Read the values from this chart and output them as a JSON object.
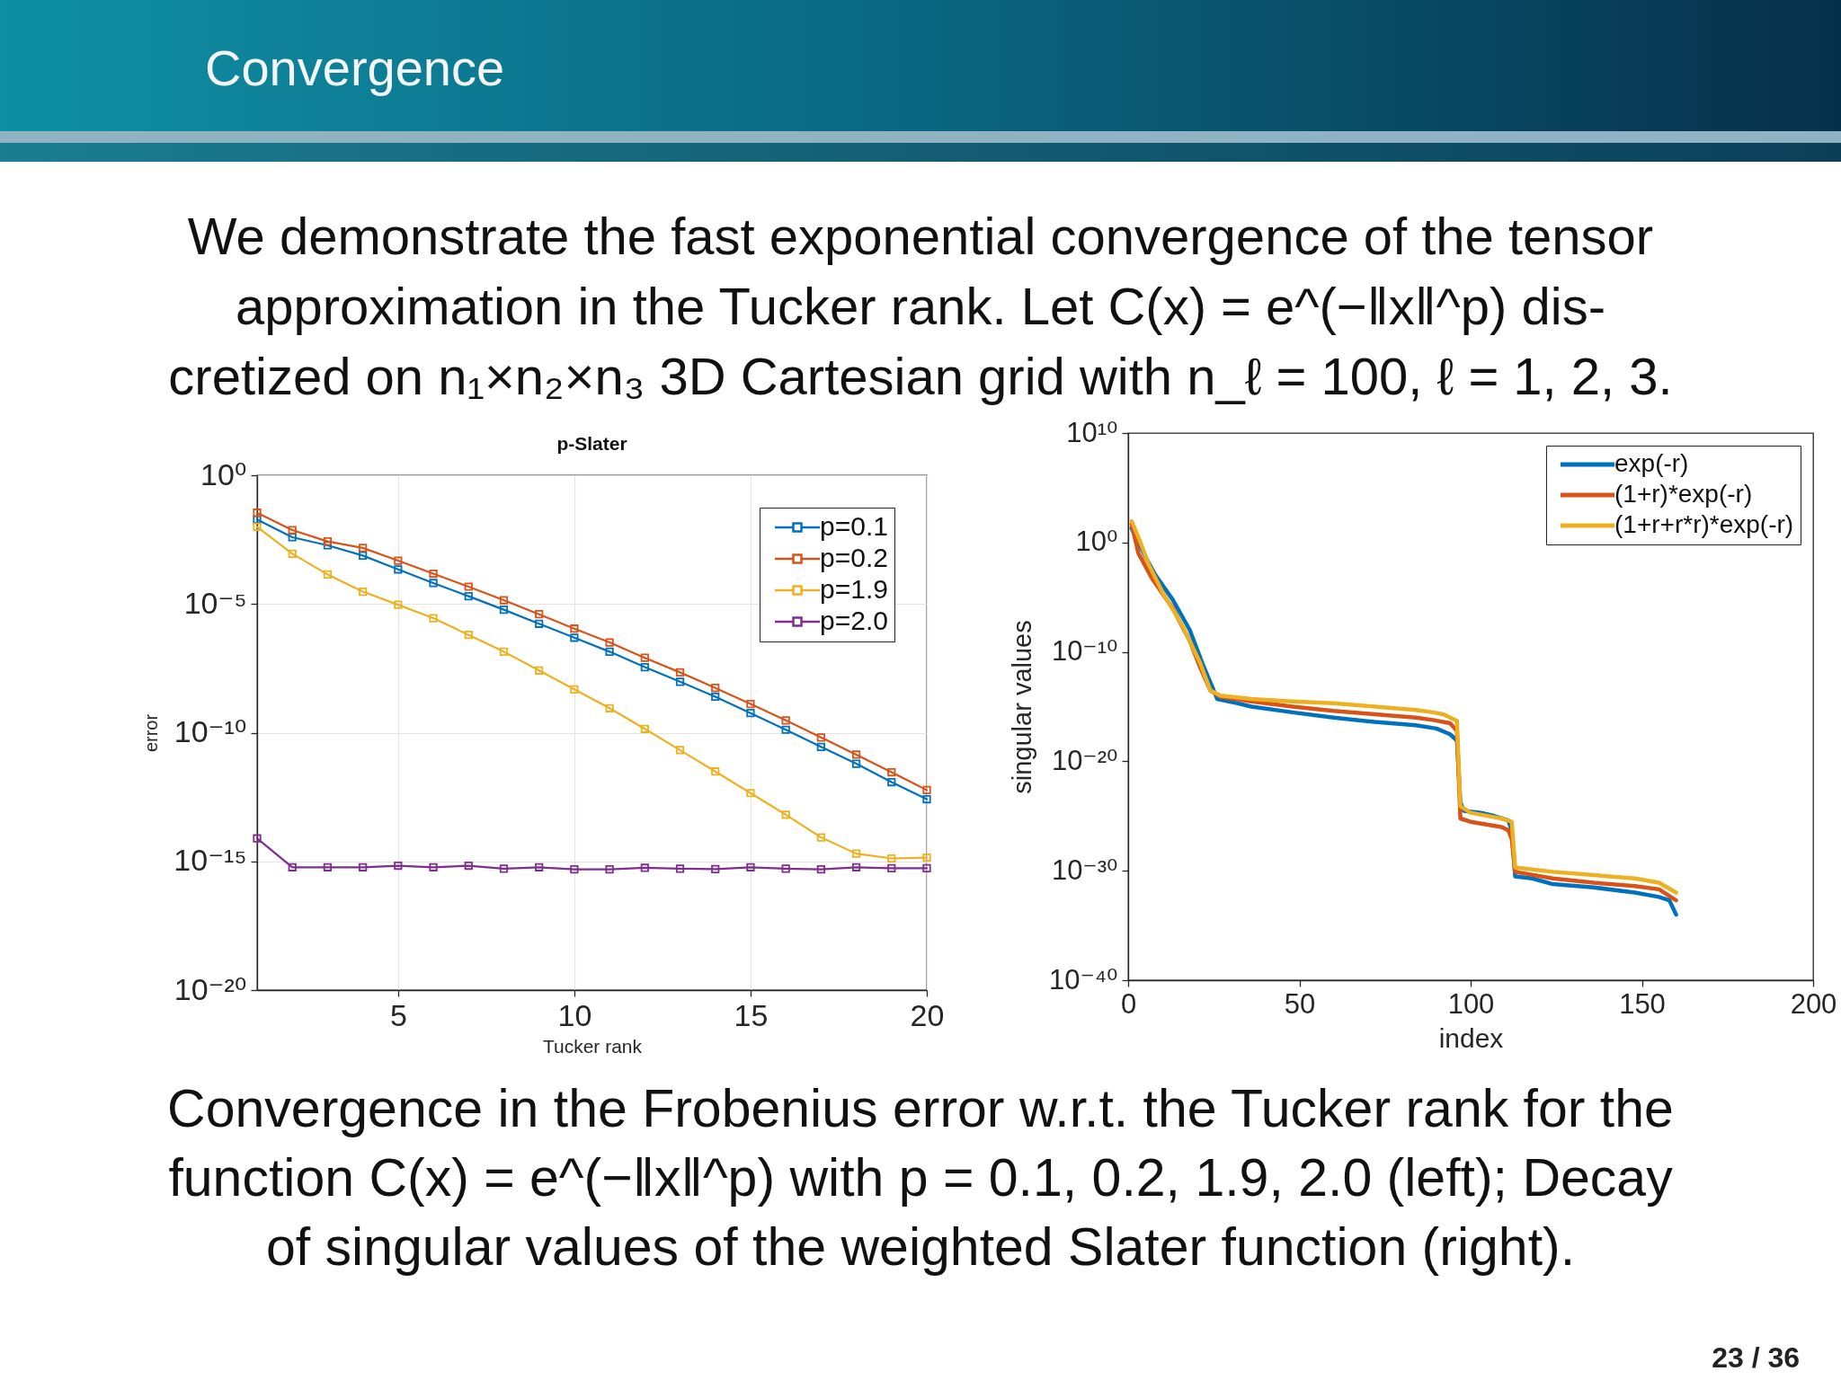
{
  "chart_data": [
    {
      "type": "other",
      "title": "Convergence",
      "subtitle": "We demonstrate the fast exponential convergence of the tensor\napproximation in the Tucker rank. Let C(x) = e^(−‖x‖^p) dis-\ncretized on n₁×n₂×n₃ 3D Cartesian grid with n_ℓ = 100, ℓ = 1, 2, 3.",
      "annotations": [
        "Convergence in the Frobenius error w.r.t. the Tucker rank for the\nfunction C(x) = e^(−‖x‖^p) with p = 0.1, 0.2, 1.9, 2.0 (left); Decay\nof singular values of the weighted Slater function (right).",
        "23 / 36"
      ]
    },
    {
      "type": "line",
      "title": "p-Slater",
      "xlabel": "Tucker rank",
      "ylabel": "error",
      "x": [
        1,
        2,
        3,
        4,
        5,
        6,
        7,
        8,
        9,
        10,
        11,
        12,
        13,
        14,
        15,
        16,
        17,
        18,
        19,
        20
      ],
      "xlim": [
        1,
        20
      ],
      "xticks": [
        5,
        10,
        15,
        20
      ],
      "ylim": [
        1e-20,
        1
      ],
      "yticks": [
        {
          "value": 1e-20,
          "label": "10⁻²⁰"
        },
        {
          "value": 1e-15,
          "label": "10⁻¹⁵"
        },
        {
          "value": 1e-10,
          "label": "10⁻¹⁰"
        },
        {
          "value": 1e-05,
          "label": "10⁻⁵"
        },
        {
          "value": 1,
          "label": "10⁰"
        }
      ],
      "log": "y",
      "grid": true,
      "legend": "top right",
      "marker": "square",
      "series": [
        {
          "name": "p=0.1",
          "color": "#0072bd",
          "values": [
            0.019,
            0.0039,
            0.0019,
            0.00076,
            0.00022,
            6.5e-05,
            2e-05,
            6e-06,
            1.7e-06,
            4.9e-07,
            1.4e-07,
            3.5e-08,
            9.5e-09,
            2.5e-09,
            5.8e-10,
            1.3e-10,
            2.8e-11,
            6.2e-12,
            1.2e-12,
            2.6e-13
          ]
        },
        {
          "name": "p=0.2",
          "color": "#d95319",
          "values": [
            0.035,
            0.0074,
            0.0027,
            0.0015,
            0.00048,
            0.00015,
            4.7e-05,
            1.4e-05,
            4e-06,
            1.1e-06,
            3.2e-07,
            8.1e-08,
            2.2e-08,
            5.5e-09,
            1.3e-09,
            3e-10,
            6.5e-11,
            1.4e-11,
            2.9e-12,
            5.9e-13
          ]
        },
        {
          "name": "p=1.9",
          "color": "#edb120",
          "values": [
            0.01,
            0.00089,
            0.00014,
            3e-05,
            9.3e-06,
            2.8e-06,
            6.3e-07,
            1.4e-07,
            2.6e-08,
            4.8e-09,
            8.9e-10,
            1.4e-10,
            2.1e-11,
            3.1e-12,
            4.5e-13,
            6.5e-14,
            8.5e-15,
            2e-15,
            1.3e-15,
            1.4e-15
          ]
        },
        {
          "name": "p=2.0",
          "color": "#7e2f8e",
          "values": [
            7.8e-15,
            5.9e-16,
            5.9e-16,
            5.9e-16,
            6.8e-16,
            5.9e-16,
            6.8e-16,
            5.2e-16,
            5.9e-16,
            4.9e-16,
            4.9e-16,
            5.6e-16,
            5.2e-16,
            5e-16,
            5.9e-16,
            5.2e-16,
            4.9e-16,
            5.9e-16,
            5.4e-16,
            5.4e-16
          ]
        }
      ]
    },
    {
      "type": "line",
      "xlabel": "index",
      "ylabel": "singular values",
      "xlim": [
        0,
        200
      ],
      "xticks": [
        0,
        50,
        100,
        150,
        200
      ],
      "ylim": [
        1e-40,
        10000000000.0
      ],
      "yticks": [
        {
          "value": 1e-40,
          "label": "10⁻⁴⁰"
        },
        {
          "value": 1e-30,
          "label": "10⁻³⁰"
        },
        {
          "value": 1e-20,
          "label": "10⁻²⁰"
        },
        {
          "value": 1e-10,
          "label": "10⁻¹⁰"
        },
        {
          "value": 1,
          "label": "10⁰"
        },
        {
          "value": 10000000000.0,
          "label": "10¹⁰"
        }
      ],
      "log": "y",
      "legend": "top right",
      "series": [
        {
          "name": "exp(-r)",
          "color": "#0072bd",
          "x": [
            1,
            5,
            8,
            13,
            18,
            22,
            25,
            26,
            32,
            36,
            48,
            60,
            72,
            84,
            90,
            94,
            96,
            97,
            98,
            103,
            107,
            111,
            112,
            113,
            118,
            124,
            136,
            148,
            155,
            158,
            160
          ],
          "values": [
            20.0,
            0.05,
            0.001,
            6e-06,
            1e-08,
            5e-12,
            3e-14,
            5e-15,
            2e-15,
            1e-15,
            3e-16,
            1e-16,
            4e-17,
            2e-17,
            1e-17,
            3e-18,
            8e-19,
            2e-24,
            3e-25,
            2e-25,
            1e-25,
            4e-26,
            5e-27,
            3e-31,
            2e-31,
            6e-32,
            3e-32,
            1e-32,
            4e-33,
            2e-33,
            1e-34
          ]
        },
        {
          "name": "(1+r)*exp(-r)",
          "color": "#d95319",
          "x": [
            1,
            3,
            7,
            13,
            18,
            21,
            24,
            27,
            36,
            48,
            60,
            72,
            84,
            89,
            94,
            96,
            97,
            100,
            109,
            111,
            112,
            113,
            124,
            136,
            148,
            155,
            160
          ],
          "values": [
            50.0,
            0.1,
            0.0005,
            1e-06,
            1e-09,
            4e-12,
            3e-14,
            8e-15,
            3e-15,
            1e-15,
            4e-16,
            2e-16,
            1e-16,
            6e-17,
            3e-17,
            6e-18,
            6e-26,
            3e-26,
            1e-26,
            5e-27,
            8e-28,
            8e-31,
            2e-31,
            8e-32,
            4e-32,
            2e-32,
            2e-33
          ]
        },
        {
          "name": "(1+r+r*r)*exp(-r)",
          "color": "#edb120",
          "x": [
            1,
            3,
            6,
            10,
            16,
            21,
            24,
            27,
            36,
            48,
            60,
            72,
            84,
            89,
            92,
            96,
            97,
            100,
            109,
            112,
            113,
            124,
            136,
            148,
            155,
            160
          ],
          "values": [
            90.0,
            3.0,
            0.01,
            3e-05,
            2e-08,
            1e-11,
            3e-14,
            1e-14,
            5e-15,
            3e-15,
            2e-15,
            1e-15,
            5e-16,
            3e-16,
            2e-16,
            5e-17,
            8e-25,
            2e-25,
            6e-26,
            3e-26,
            2e-30,
            8e-31,
            4e-31,
            2e-31,
            8e-32,
            1e-32
          ]
        }
      ]
    }
  ]
}
